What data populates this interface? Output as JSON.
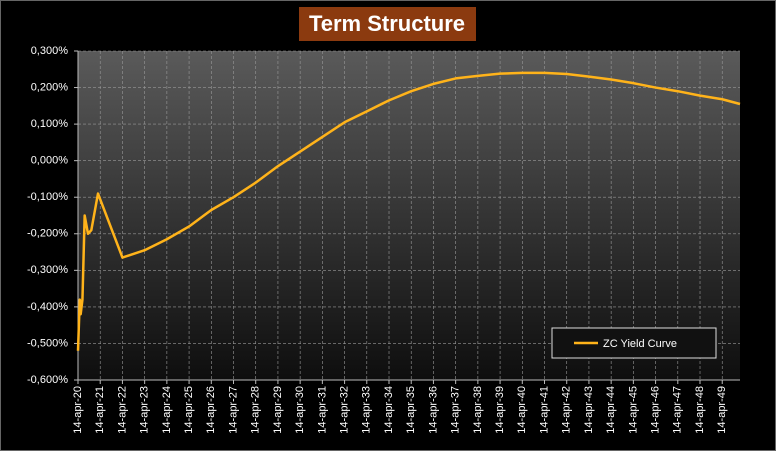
{
  "chart_data": {
    "type": "line",
    "title": "Term Structure",
    "x": [
      2020.0,
      2020.08,
      2020.12,
      2020.2,
      2020.3,
      2020.45,
      2020.6,
      2020.9,
      2022.0,
      2023,
      2024,
      2025,
      2026,
      2027,
      2028,
      2029,
      2030,
      2031,
      2032,
      2033,
      2034,
      2035,
      2036,
      2037,
      2038,
      2039,
      2040,
      2041,
      2042,
      2043,
      2044,
      2045,
      2046,
      2047,
      2048,
      2049,
      2049.8
    ],
    "series": [
      {
        "name": "ZC Yield Curve",
        "color": "#ffb31a",
        "values": [
          -0.52,
          -0.38,
          -0.42,
          -0.38,
          -0.15,
          -0.2,
          -0.19,
          -0.09,
          -0.265,
          -0.245,
          -0.215,
          -0.18,
          -0.135,
          -0.1,
          -0.06,
          -0.015,
          0.025,
          0.065,
          0.105,
          0.135,
          0.165,
          0.19,
          0.21,
          0.225,
          0.232,
          0.238,
          0.24,
          0.24,
          0.237,
          0.23,
          0.222,
          0.212,
          0.2,
          0.19,
          0.178,
          0.168,
          0.155
        ]
      }
    ],
    "xlim": [
      2020,
      2049.8
    ],
    "xticks": [
      {
        "value": 2020,
        "label": "14-apr-20"
      },
      {
        "value": 2021,
        "label": "14-apr-21"
      },
      {
        "value": 2022,
        "label": "14-apr-22"
      },
      {
        "value": 2023,
        "label": "14-apr-23"
      },
      {
        "value": 2024,
        "label": "14-apr-24"
      },
      {
        "value": 2025,
        "label": "14-apr-25"
      },
      {
        "value": 2026,
        "label": "14-apr-26"
      },
      {
        "value": 2027,
        "label": "14-apr-27"
      },
      {
        "value": 2028,
        "label": "14-apr-28"
      },
      {
        "value": 2029,
        "label": "14-apr-29"
      },
      {
        "value": 2030,
        "label": "14-apr-30"
      },
      {
        "value": 2031,
        "label": "14-apr-31"
      },
      {
        "value": 2032,
        "label": "14-apr-32"
      },
      {
        "value": 2033,
        "label": "14-apr-33"
      },
      {
        "value": 2034,
        "label": "14-apr-34"
      },
      {
        "value": 2035,
        "label": "14-apr-35"
      },
      {
        "value": 2036,
        "label": "14-apr-36"
      },
      {
        "value": 2037,
        "label": "14-apr-37"
      },
      {
        "value": 2038,
        "label": "14-apr-38"
      },
      {
        "value": 2039,
        "label": "14-apr-39"
      },
      {
        "value": 2040,
        "label": "14-apr-40"
      },
      {
        "value": 2041,
        "label": "14-apr-41"
      },
      {
        "value": 2042,
        "label": "14-apr-42"
      },
      {
        "value": 2043,
        "label": "14-apr-43"
      },
      {
        "value": 2044,
        "label": "14-apr-44"
      },
      {
        "value": 2045,
        "label": "14-apr-45"
      },
      {
        "value": 2046,
        "label": "14-apr-46"
      },
      {
        "value": 2047,
        "label": "14-apr-47"
      },
      {
        "value": 2048,
        "label": "14-apr-48"
      },
      {
        "value": 2049,
        "label": "14-apr-49"
      }
    ],
    "ylim": [
      -0.6,
      0.3
    ],
    "yticks": [
      {
        "value": -0.6,
        "label": "-0,600%"
      },
      {
        "value": -0.5,
        "label": "-0,500%"
      },
      {
        "value": -0.4,
        "label": "-0,400%"
      },
      {
        "value": -0.3,
        "label": "-0,300%"
      },
      {
        "value": -0.2,
        "label": "-0,200%"
      },
      {
        "value": -0.1,
        "label": "-0,100%"
      },
      {
        "value": 0,
        "label": "0,000%"
      },
      {
        "value": 0.1,
        "label": "0,100%"
      },
      {
        "value": 0.2,
        "label": "0,200%"
      },
      {
        "value": 0.3,
        "label": "0,300%"
      }
    ],
    "grid": true
  }
}
